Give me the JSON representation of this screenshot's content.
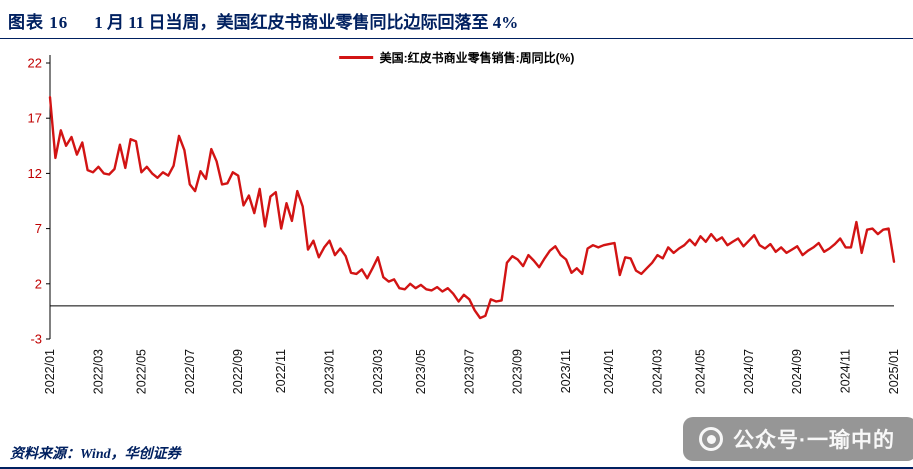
{
  "header": {
    "figure_label": "图表 16",
    "title": "1 月 11 日当周，美国红皮书商业零售同比边际回落至 4%"
  },
  "legend": {
    "label": "美国:红皮书商业零售销售:周同比(%)"
  },
  "footer": {
    "source": "资料来源：Wind，华创证券"
  },
  "watermark": {
    "icon": "camera-icon",
    "text": "公众号·一瑜中的"
  },
  "colors": {
    "line": "#D21414",
    "title": "#002060",
    "y_tick": "#C00000",
    "x_tick": "#111111",
    "axis": "#000000"
  },
  "chart_data": {
    "type": "line",
    "title": "1 月 11 日当周，美国红皮书商业零售同比边际回落至 4%",
    "xlabel": "",
    "ylabel": "",
    "ylim": [
      -3,
      22
    ],
    "y_ticks": [
      22,
      17,
      12,
      7,
      2,
      -3
    ],
    "grid": false,
    "legend_position": "top",
    "x_tick_labels": [
      "2022/01",
      "2022/03",
      "2022/05",
      "2022/07",
      "2022/09",
      "2022/11",
      "2023/01",
      "2023/03",
      "2023/05",
      "2023/07",
      "2023/09",
      "2023/11",
      "2024/01",
      "2024/03",
      "2024/05",
      "2024/07",
      "2024/09",
      "2024/11",
      "2025/01"
    ],
    "x_tick_indices": [
      0,
      9,
      17,
      26,
      35,
      43,
      52,
      61,
      69,
      78,
      87,
      96,
      104,
      113,
      121,
      130,
      139,
      148,
      157
    ],
    "series": [
      {
        "name": "美国:红皮书商业零售销售:周同比(%)",
        "values": [
          18.9,
          13.4,
          15.9,
          14.5,
          15.3,
          13.7,
          14.8,
          12.3,
          12.1,
          12.6,
          12.0,
          11.9,
          12.4,
          14.6,
          12.5,
          15.1,
          14.9,
          12.1,
          12.6,
          12.0,
          11.6,
          12.1,
          11.8,
          12.7,
          15.4,
          14.1,
          11.0,
          10.4,
          12.2,
          11.5,
          14.2,
          13.1,
          11.0,
          11.1,
          12.1,
          11.8,
          9.1,
          10.0,
          8.4,
          10.6,
          7.2,
          9.9,
          10.3,
          7.0,
          9.3,
          7.7,
          10.4,
          9.0,
          5.1,
          5.9,
          4.4,
          5.3,
          5.9,
          4.6,
          5.2,
          4.5,
          3.0,
          2.9,
          3.3,
          2.5,
          3.4,
          4.4,
          2.6,
          2.2,
          2.4,
          1.6,
          1.5,
          2.0,
          1.6,
          1.9,
          1.5,
          1.4,
          1.7,
          1.3,
          1.6,
          1.1,
          0.4,
          1.0,
          0.6,
          -0.4,
          -1.1,
          -0.9,
          0.6,
          0.4,
          0.5,
          3.9,
          4.5,
          4.2,
          3.6,
          4.6,
          4.1,
          3.5,
          4.3,
          5.0,
          5.4,
          4.6,
          4.2,
          3.0,
          3.4,
          2.9,
          5.2,
          5.5,
          5.3,
          5.5,
          5.6,
          5.7,
          2.8,
          4.4,
          4.3,
          3.2,
          2.9,
          3.4,
          3.9,
          4.6,
          4.3,
          5.3,
          4.8,
          5.2,
          5.5,
          6.0,
          5.5,
          6.3,
          5.8,
          6.5,
          5.9,
          6.2,
          5.5,
          5.8,
          6.1,
          5.4,
          5.9,
          6.4,
          5.5,
          5.2,
          5.6,
          4.9,
          5.3,
          4.8,
          5.1,
          5.4,
          4.6,
          5.0,
          5.3,
          5.7,
          4.9,
          5.2,
          5.6,
          6.1,
          5.3,
          5.3,
          7.6,
          4.8,
          6.9,
          7.0,
          6.5,
          6.9,
          7.0,
          4.0
        ]
      }
    ]
  }
}
